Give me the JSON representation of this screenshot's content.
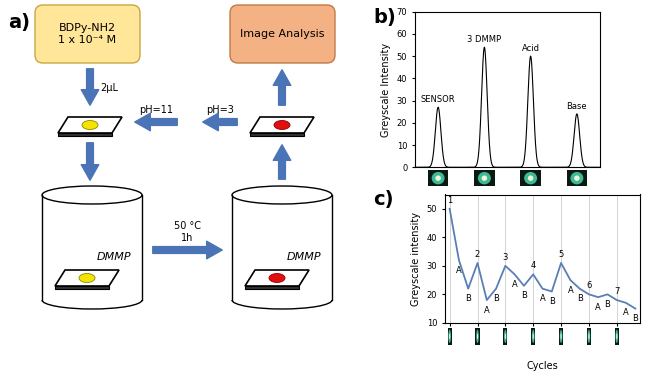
{
  "panel_labels": [
    "a)",
    "b)",
    "c)"
  ],
  "diagram": {
    "nodes": [
      {
        "label": "BDPy-NH2\n1 x 10⁻⁴ M"
      },
      {
        "label": "Image Analysis"
      }
    ],
    "containers": [
      {
        "label": "DMMP"
      },
      {
        "label": "DMMP"
      }
    ],
    "arrows": [
      {
        "label": "2μL"
      },
      {
        "label": "pH=11"
      },
      {
        "label": "pH=3"
      },
      {
        "label": "50 °C\n1h"
      }
    ]
  },
  "chart_data": [
    {
      "type": "peak",
      "categories": [
        "SENSOR",
        "3 DMMP",
        "Acid",
        "Base"
      ],
      "values": [
        27,
        54,
        50,
        24
      ],
      "y_label": "Greyscale Intensity",
      "ylim": [
        0,
        70
      ],
      "yticks": [
        0,
        10,
        20,
        30,
        40,
        50,
        60,
        70
      ],
      "tick_labels": "y",
      "color": "#000000"
    },
    {
      "type": "line",
      "point_labels": [
        "1",
        "A",
        "B",
        "2",
        "A",
        "B",
        "3",
        "A",
        "B",
        "4",
        "A",
        "B",
        "5",
        "A",
        "B",
        "6",
        "A",
        "B",
        "7",
        "A",
        "B"
      ],
      "values": [
        50,
        32,
        22,
        31,
        18,
        22,
        30,
        27,
        23,
        27,
        22,
        21,
        31,
        25,
        22,
        20,
        19,
        20,
        18,
        17,
        15
      ],
      "x_label": "Cycles",
      "y_label": "Greyscale intensity",
      "ylim": [
        10,
        55
      ],
      "yticks": [
        10,
        20,
        30,
        40,
        50
      ],
      "tick_labels": "y",
      "grid": true,
      "color": "#5b7fb5"
    }
  ]
}
